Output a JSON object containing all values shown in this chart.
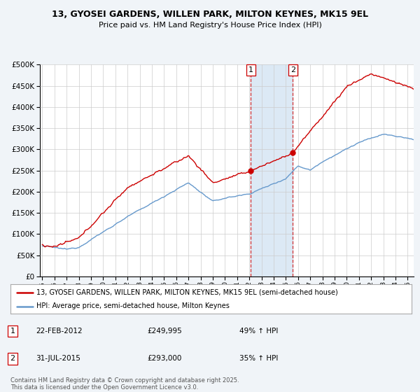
{
  "title_line1": "13, GYOSEI GARDENS, WILLEN PARK, MILTON KEYNES, MK15 9EL",
  "title_line2": "Price paid vs. HM Land Registry's House Price Index (HPI)",
  "legend_line1": "13, GYOSEI GARDENS, WILLEN PARK, MILTON KEYNES, MK15 9EL (semi-detached house)",
  "legend_line2": "HPI: Average price, semi-detached house, Milton Keynes",
  "footnote": "Contains HM Land Registry data © Crown copyright and database right 2025.\nThis data is licensed under the Open Government Licence v3.0.",
  "transaction1_date": "22-FEB-2012",
  "transaction1_price": "£249,995",
  "transaction1_hpi": "49% ↑ HPI",
  "transaction1_year": 2012.13,
  "transaction1_value": 249995,
  "transaction2_date": "31-JUL-2015",
  "transaction2_price": "£293,000",
  "transaction2_hpi": "35% ↑ HPI",
  "transaction2_year": 2015.58,
  "transaction2_value": 293000,
  "price_color": "#cc0000",
  "hpi_color": "#6699cc",
  "highlight_color": "#dce9f5",
  "background_color": "#f0f4f8",
  "plot_bg": "#ffffff",
  "grid_color": "#cccccc",
  "ylim": [
    0,
    500000
  ],
  "xlim_start": 1994.8,
  "xlim_end": 2025.5
}
